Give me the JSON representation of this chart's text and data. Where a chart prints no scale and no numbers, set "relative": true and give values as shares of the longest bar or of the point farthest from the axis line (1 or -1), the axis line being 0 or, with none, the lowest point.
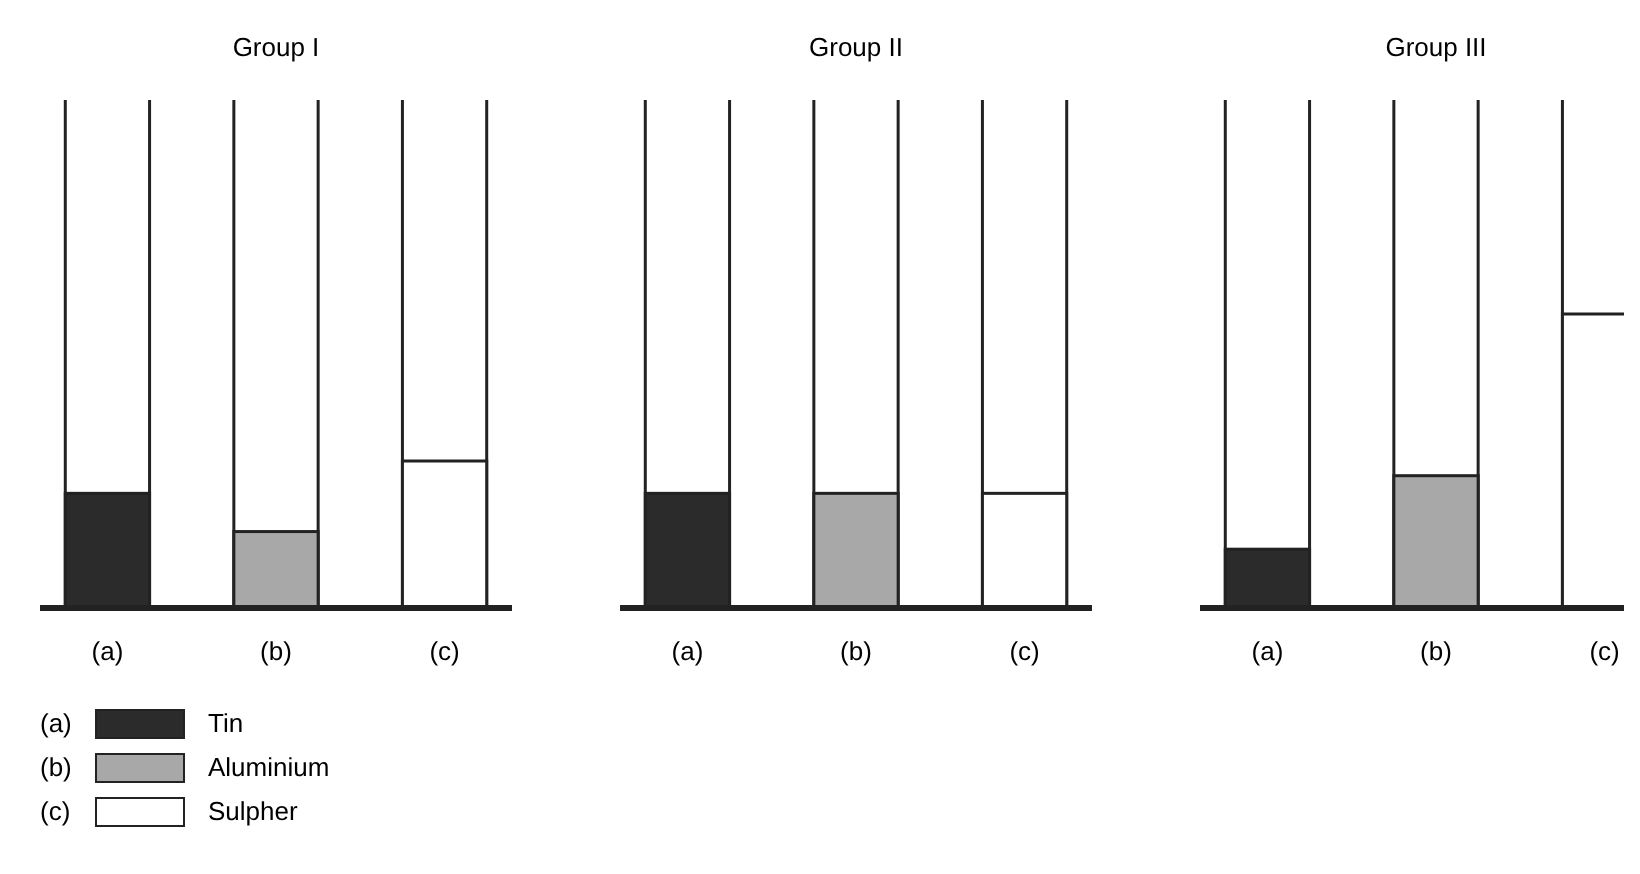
{
  "chart_data": {
    "type": "bar",
    "categories": [
      "(a)",
      "(b)",
      "(c)",
      "(a)",
      "(b)",
      "(c)",
      "(a)",
      "(b)",
      "(c)"
    ],
    "annotations": [
      "Group I",
      "Group II",
      "Group III"
    ],
    "relative": true,
    "stacked": true,
    "legend": "bottom",
    "series": [
      {
        "name": "Tin",
        "color": "#2b2b2b",
        "values": [
          0.39,
          null,
          null,
          0.39,
          null,
          null,
          0.2,
          null,
          null
        ]
      },
      {
        "name": "Aluminium",
        "color": "#a8a8a8",
        "values": [
          null,
          0.26,
          null,
          null,
          0.39,
          null,
          null,
          0.45,
          null
        ]
      },
      {
        "name": "Sulpher",
        "color": "#ffffff",
        "values": [
          null,
          null,
          0.5,
          null,
          null,
          0.39,
          null,
          null,
          1
        ]
      }
    ]
  }
}
